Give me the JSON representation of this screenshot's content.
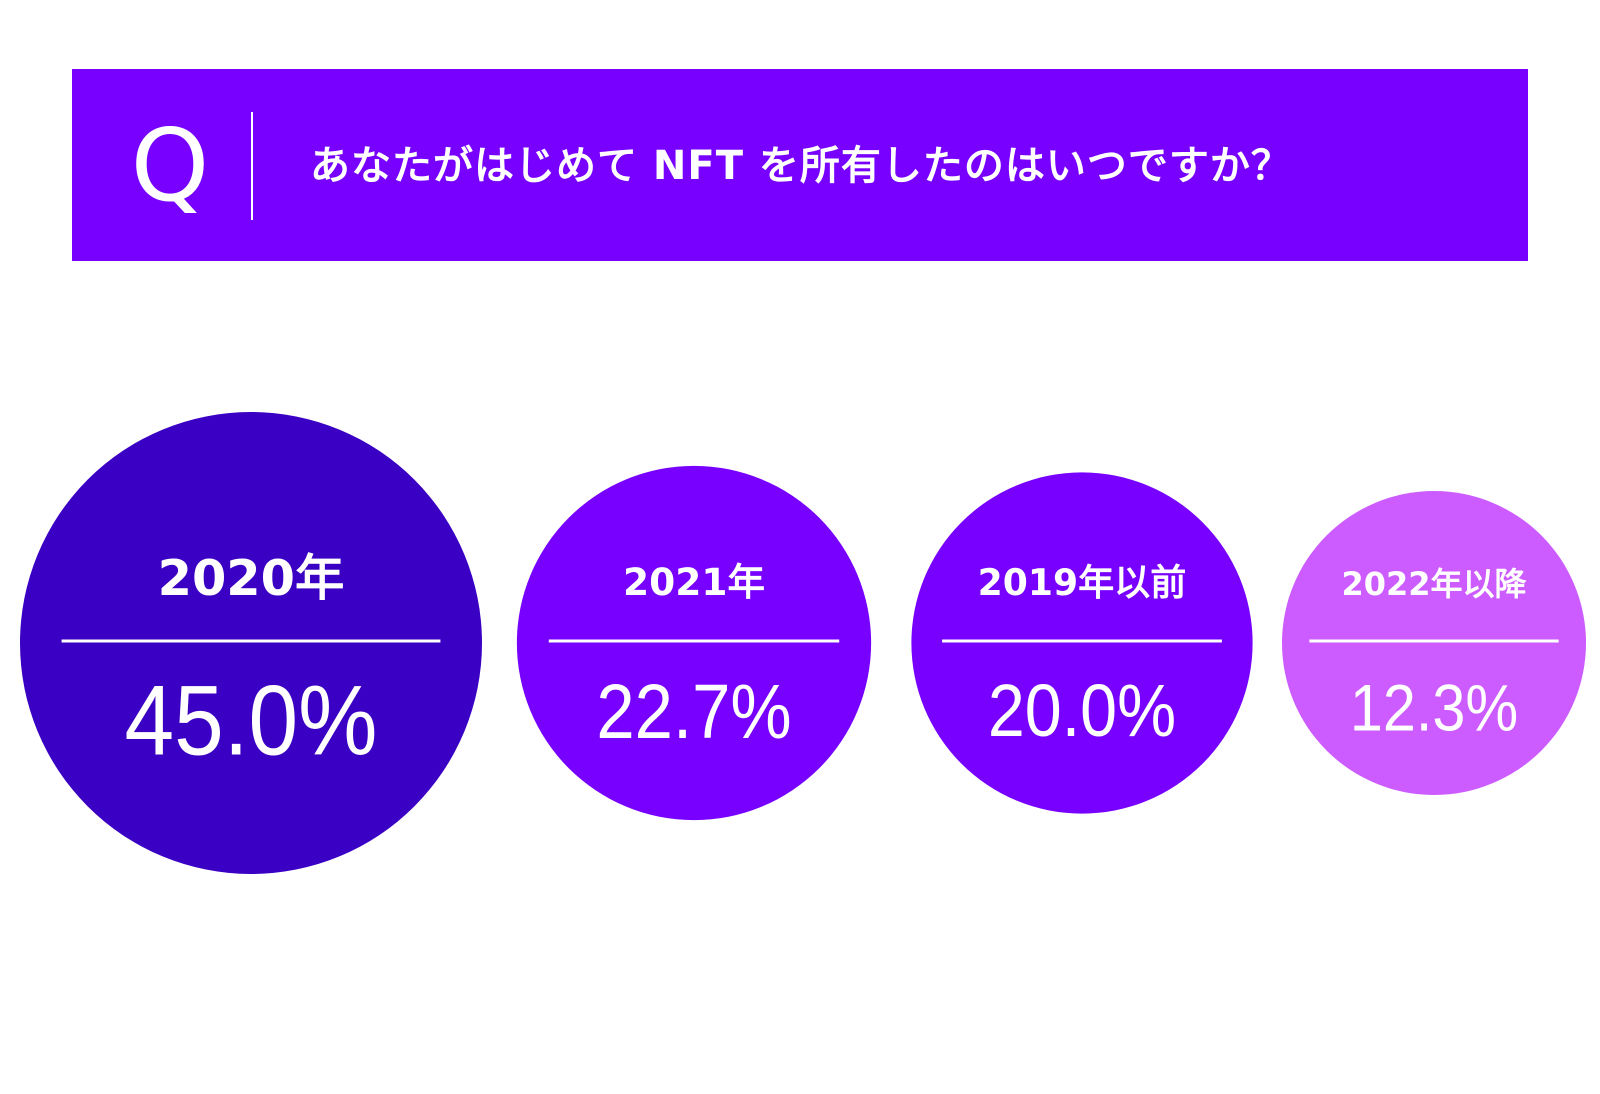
{
  "question": {
    "letter": "Q",
    "text": "あなたがはじめて NFT を所有したのはいつですか？"
  },
  "colors": {
    "banner": "#7700ff",
    "circle_1": "#3a00c3",
    "circle_2": "#7700ff",
    "circle_3": "#7700ff",
    "circle_4": "#cc5cff",
    "text": "#ffffff"
  },
  "chart_data": {
    "type": "bubble",
    "title": "あなたがはじめて NFT を所有したのはいつですか？",
    "categories": [
      "2020年",
      "2021年",
      "2019年以前",
      "2022年以降"
    ],
    "values": [
      45.0,
      22.7,
      20.0,
      12.3
    ],
    "value_labels": [
      "45.0%",
      "22.7%",
      "20.0%",
      "12.3%"
    ],
    "unit": "%",
    "colors": [
      "#3a00c3",
      "#7700ff",
      "#7700ff",
      "#cc5cff"
    ]
  }
}
